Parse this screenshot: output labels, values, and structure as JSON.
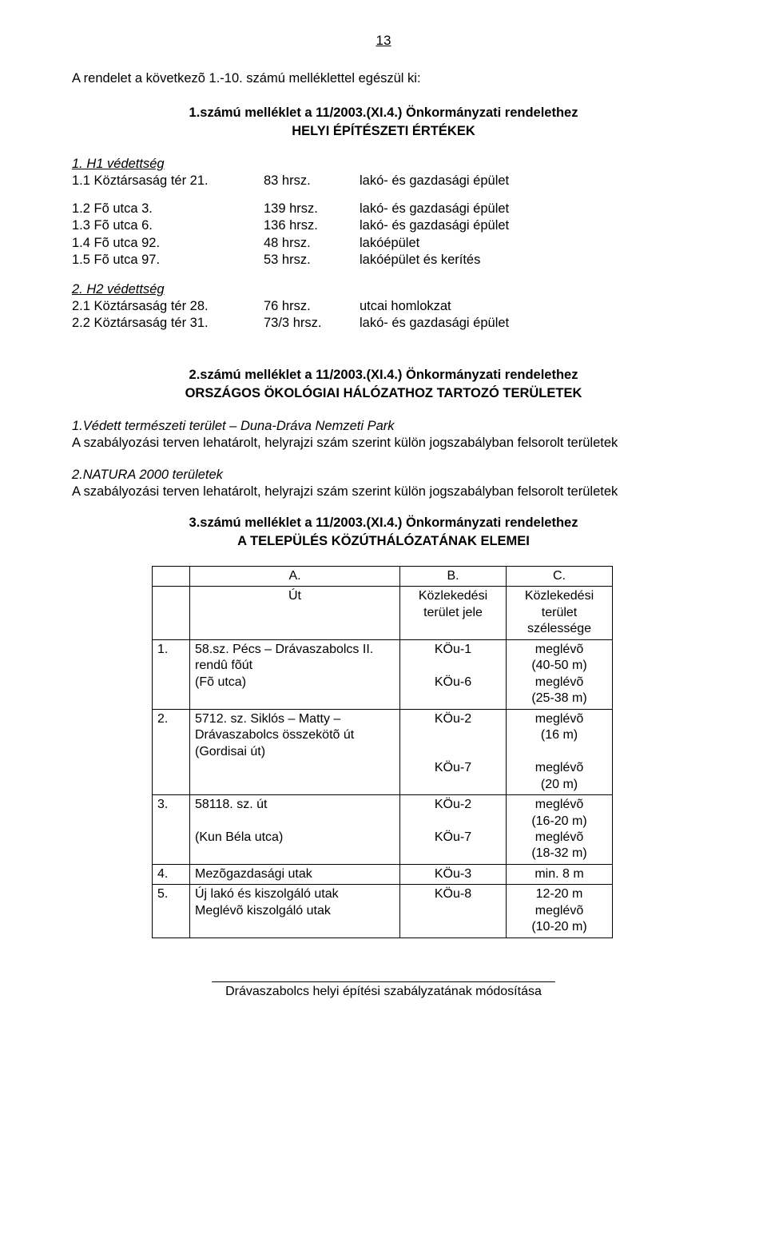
{
  "page_number": "13",
  "intro": "A rendelet a következõ 1.-10. számú melléklettel egészül ki:",
  "attach1": {
    "title": "1.számú melléklet a 11/2003.(XI.4.) Önkormányzati rendelethez",
    "subtitle": "HELYI ÉPÍTÉSZETI ÉRTÉKEK"
  },
  "h1": {
    "heading": "1. H1 védettség",
    "rows": [
      {
        "a": "1.1 Köztársaság tér 21.",
        "b": "83 hrsz.",
        "c": "lakó- és gazdasági épület"
      },
      {
        "a": "1.2 Fõ utca 3.",
        "b": "139 hrsz.",
        "c": "lakó- és gazdasági épület"
      },
      {
        "a": "1.3 Fõ utca 6.",
        "b": "136 hrsz.",
        "c": "lakó- és gazdasági épület"
      },
      {
        "a": "1.4 Fõ utca 92.",
        "b": "48 hrsz.",
        "c": "lakóépület"
      },
      {
        "a": "1.5 Fõ utca 97.",
        "b": "53 hrsz.",
        "c": "lakóépület és kerítés"
      }
    ]
  },
  "h2": {
    "heading": "2. H2 védettség",
    "rows": [
      {
        "a": "2.1 Köztársaság tér 28.",
        "b": "76 hrsz.",
        "c": "utcai homlokzat"
      },
      {
        "a": "2.2 Köztársaság tér 31.",
        "b": "73/3 hrsz.",
        "c": "lakó- és gazdasági épület"
      }
    ]
  },
  "attach2": {
    "title": "2.számú melléklet a 11/2003.(XI.4.) Önkormányzati rendelethez",
    "subtitle": "ORSZÁGOS ÖKOLÓGIAI HÁLÓZATHOZ TARTOZÓ TERÜLETEK"
  },
  "eco1": {
    "heading": "1.Védett természeti terület – Duna-Dráva Nemzeti Park",
    "body": "A szabályozási terven lehatárolt, helyrajzi szám szerint külön jogszabályban felsorolt területek"
  },
  "eco2": {
    "heading": "2.NATURA 2000 területek",
    "body": "A szabályozási terven lehatárolt, helyrajzi szám szerint külön jogszabályban felsorolt területek"
  },
  "attach3": {
    "title": "3.számú melléklet a 11/2003.(XI.4.) Önkormányzati rendelethez",
    "subtitle": "A TELEPÜLÉS KÖZÚTHÁLÓZATÁNAK ELEMEI"
  },
  "roads": {
    "header": {
      "a_top": "A.",
      "b_top": "B.",
      "c_top": "C.",
      "a": "Út",
      "b": "Közlekedési terület jele",
      "c": "Közlekedési terület szélessége"
    },
    "rows": [
      {
        "n": "1.",
        "a": "58.sz. Pécs – Drávaszabolcs II. rendû fõút\n(Fõ utca)",
        "b": "KÖu-1\n\nKÖu-6",
        "c": "meglévõ\n(40-50 m)\nmeglévõ\n(25-38 m)"
      },
      {
        "n": "2.",
        "a": "5712. sz. Siklós – Matty – Drávaszabolcs összekötõ út\n(Gordisai út)",
        "b": "KÖu-2\n\n\nKÖu-7",
        "c": "meglévõ\n(16 m)\n\nmeglévõ\n(20 m)"
      },
      {
        "n": "3.",
        "a": "58118. sz. út\n\n(Kun Béla utca)",
        "b": "KÖu-2\n\nKÖu-7",
        "c": "meglévõ\n(16-20 m)\nmeglévõ\n(18-32 m)"
      },
      {
        "n": "4.",
        "a": "Mezõgazdasági utak",
        "b": "KÖu-3",
        "c": "min. 8 m"
      },
      {
        "n": "5.",
        "a": "Új lakó és kiszolgáló utak\nMeglévõ kiszolgáló utak",
        "b": "KÖu-8",
        "c": "12-20 m\nmeglévõ\n(10-20 m)"
      }
    ]
  },
  "footer": "Drávaszabolcs helyi építési szabályzatának módosítása"
}
